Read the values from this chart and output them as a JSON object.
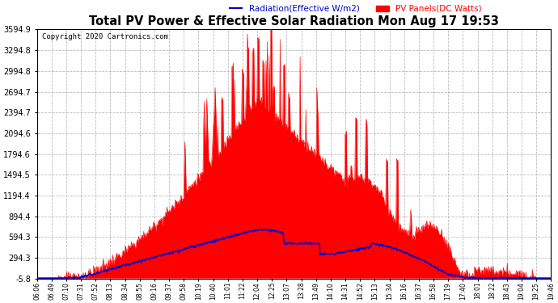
{
  "title": "Total PV Power & Effective Solar Radiation Mon Aug 17 19:53",
  "copyright": "Copyright 2020 Cartronics.com",
  "legend_radiation": "Radiation(Effective W/m2)",
  "legend_pv": "PV Panels(DC Watts)",
  "ymin": -5.8,
  "ymax": 3594.9,
  "yticks": [
    -5.8,
    294.3,
    594.3,
    894.4,
    1194.4,
    1494.5,
    1794.6,
    2094.6,
    2394.7,
    2694.7,
    2994.8,
    3294.8,
    3594.9
  ],
  "ytick_labels": [
    "-5.8",
    "294.3",
    "594.3",
    "894.4",
    "1194.4",
    "1494.5",
    "1794.6",
    "2094.6",
    "2394.7",
    "2694.7",
    "2994.8",
    "3294.8",
    "3594.9"
  ],
  "xtick_labels": [
    "06:06",
    "06:49",
    "07:10",
    "07:31",
    "07:52",
    "08:13",
    "08:34",
    "08:55",
    "09:16",
    "09:37",
    "09:58",
    "10:19",
    "10:40",
    "11:01",
    "11:22",
    "12:04",
    "12:25",
    "13:07",
    "13:28",
    "13:49",
    "14:10",
    "14:31",
    "14:52",
    "15:13",
    "15:34",
    "16:16",
    "16:37",
    "16:58",
    "17:19",
    "17:40",
    "18:01",
    "18:22",
    "18:43",
    "19:04",
    "19:25",
    "19:46"
  ],
  "bg_color": "#ffffff",
  "plot_bg_color": "#ffffff",
  "grid_color": "#aaaaaa",
  "title_color": "#000000",
  "radiation_color": "#0000cc",
  "pv_color": "#ff0000",
  "pv_fill_color": "#ff0000",
  "copyright_color": "#000000",
  "tick_color": "#000000",
  "axis_color": "#000000",
  "n_points": 800
}
